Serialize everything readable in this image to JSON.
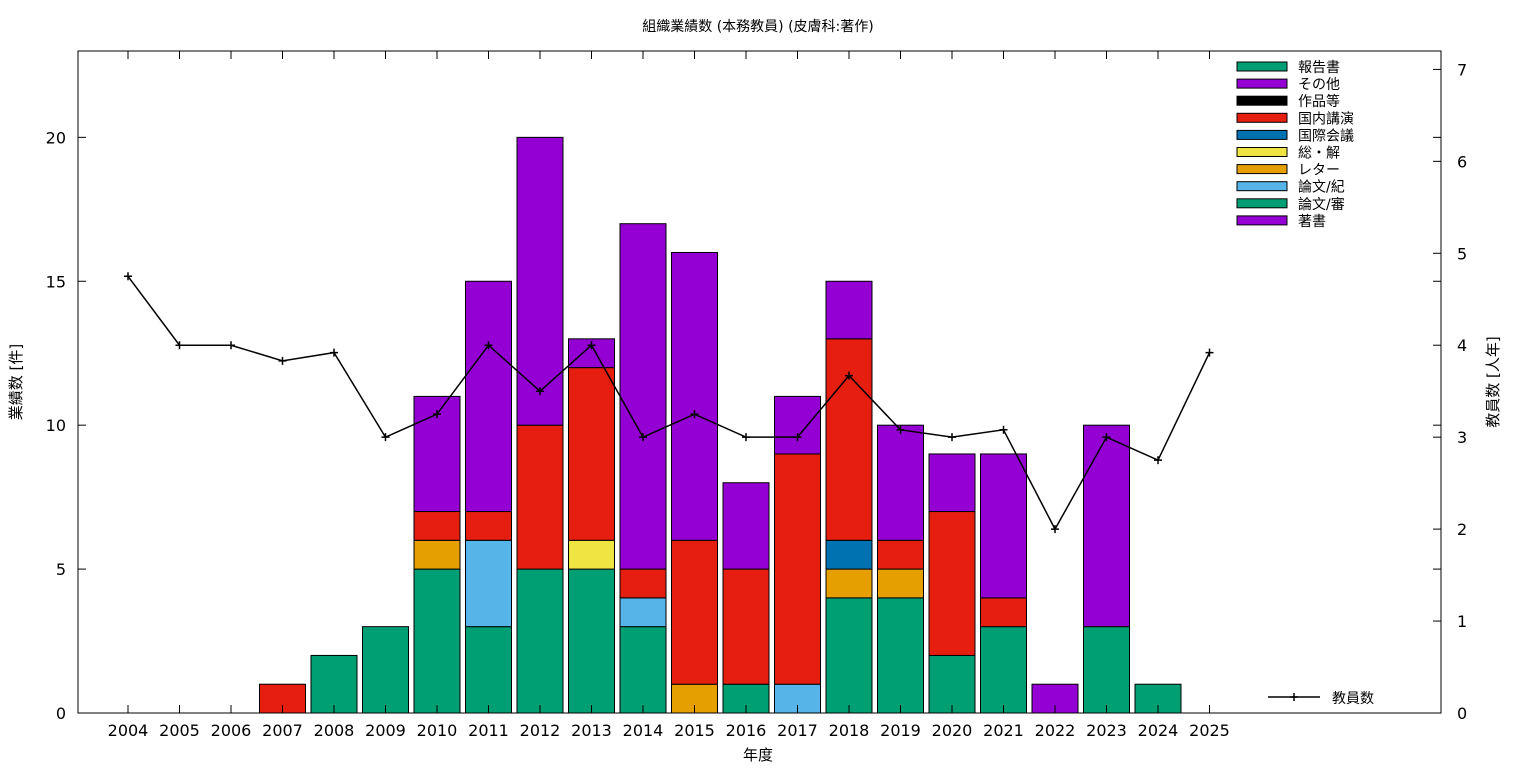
{
  "chart_data": {
    "type": "bar",
    "title": "組織業績数 (本務教員) (皮膚科:著作)",
    "xlabel": "年度",
    "ylabel": "業績数 [件]",
    "y2label": "教員数 [人年]",
    "categories": [
      "2004",
      "2005",
      "2006",
      "2007",
      "2008",
      "2009",
      "2010",
      "2011",
      "2012",
      "2013",
      "2014",
      "2015",
      "2016",
      "2017",
      "2018",
      "2019",
      "2020",
      "2021",
      "2022",
      "2023",
      "2024",
      "2025"
    ],
    "ylim": [
      0,
      23
    ],
    "y2lim": [
      0,
      7.2
    ],
    "yticks": [
      0,
      5,
      10,
      15,
      20
    ],
    "y2ticks": [
      0,
      1,
      2,
      3,
      4,
      5,
      6,
      7
    ],
    "grid": false,
    "legend_position": "top-right",
    "stack_order_bottom_to_top": [
      "論文/審",
      "論文/紀",
      "レター",
      "総・解",
      "国際会議",
      "国内講演",
      "作品等",
      "その他",
      "報告書",
      "著書"
    ],
    "series": [
      {
        "name": "報告書",
        "color": "#009e73",
        "values": [
          0,
          0,
          0,
          0,
          2,
          3,
          0,
          0,
          0,
          0,
          0,
          0,
          0,
          0,
          0,
          0,
          0,
          0,
          0,
          0,
          1,
          0
        ]
      },
      {
        "name": "その他",
        "color": "#9400d3",
        "values": [
          0,
          0,
          0,
          0,
          0,
          0,
          0,
          0,
          0,
          0,
          0,
          0,
          0,
          0,
          0,
          0,
          0,
          0,
          0,
          0,
          0,
          0
        ]
      },
      {
        "name": "作品等",
        "color": "#000000",
        "values": [
          0,
          0,
          0,
          0,
          0,
          0,
          0,
          0,
          0,
          0,
          0,
          0,
          0,
          0,
          0,
          0,
          0,
          0,
          0,
          0,
          0,
          0
        ]
      },
      {
        "name": "国内講演",
        "color": "#e51e10",
        "values": [
          0,
          0,
          0,
          1,
          0,
          0,
          1,
          1,
          5,
          6,
          1,
          5,
          4,
          8,
          7,
          1,
          5,
          1,
          0,
          0,
          0,
          0
        ]
      },
      {
        "name": "国際会議",
        "color": "#0072b2",
        "values": [
          0,
          0,
          0,
          0,
          0,
          0,
          0,
          0,
          0,
          0,
          0,
          0,
          0,
          0,
          1,
          0,
          0,
          0,
          0,
          0,
          0,
          0
        ]
      },
      {
        "name": "総・解",
        "color": "#f0e442",
        "values": [
          0,
          0,
          0,
          0,
          0,
          0,
          0,
          0,
          0,
          1,
          0,
          0,
          0,
          0,
          0,
          0,
          0,
          0,
          0,
          0,
          0,
          0
        ]
      },
      {
        "name": "レター",
        "color": "#e69f00",
        "values": [
          0,
          0,
          0,
          0,
          0,
          0,
          1,
          0,
          0,
          0,
          0,
          1,
          0,
          0,
          1,
          1,
          0,
          0,
          0,
          0,
          0,
          0
        ]
      },
      {
        "name": "論文/紀",
        "color": "#56b4e9",
        "values": [
          0,
          0,
          0,
          0,
          0,
          0,
          0,
          3,
          0,
          0,
          1,
          0,
          0,
          1,
          0,
          0,
          0,
          0,
          0,
          0,
          0,
          0
        ]
      },
      {
        "name": "論文/審",
        "color": "#009e73",
        "values": [
          0,
          0,
          0,
          0,
          0,
          0,
          5,
          3,
          5,
          5,
          3,
          0,
          1,
          0,
          4,
          4,
          2,
          3,
          0,
          3,
          0,
          0
        ]
      },
      {
        "name": "著書",
        "color": "#9400d3",
        "values": [
          0,
          0,
          0,
          0,
          0,
          0,
          4,
          8,
          10,
          1,
          12,
          10,
          3,
          2,
          2,
          4,
          2,
          5,
          1,
          7,
          0,
          0
        ]
      }
    ],
    "bottom_著書": [
      0,
      0,
      0,
      0,
      0,
      0,
      0,
      0,
      0,
      0,
      0,
      0,
      0,
      0,
      0,
      0,
      0,
      0,
      0,
      0,
      0,
      0
    ],
    "line_series": {
      "name": "教員数",
      "color": "#000000",
      "axis": "right",
      "values": [
        4.75,
        4.0,
        4.0,
        3.83,
        3.92,
        3.0,
        3.25,
        4.0,
        3.5,
        4.0,
        3.0,
        3.25,
        3.0,
        3.0,
        3.67,
        3.08,
        3.0,
        3.08,
        2.0,
        3.0,
        2.75,
        3.92
      ]
    }
  }
}
